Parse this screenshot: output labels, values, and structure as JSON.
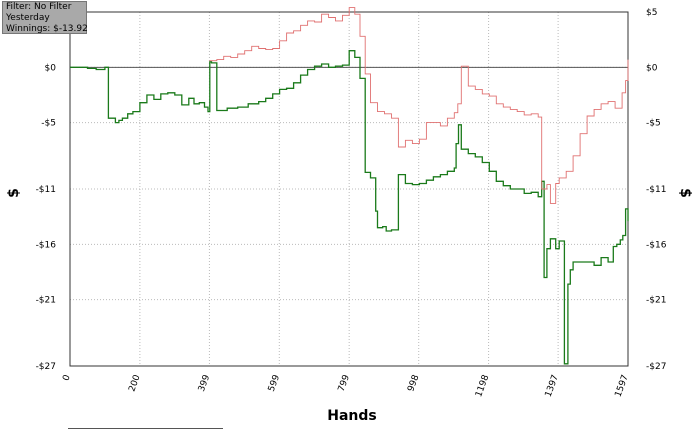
{
  "info": {
    "filter": "Filter: No Filter",
    "period": "Yesterday",
    "winnings": "Winnings: $-13.92"
  },
  "chart_data": {
    "type": "line",
    "xlabel": "Hands",
    "ylabel": "$",
    "xlim": [
      0,
      1597
    ],
    "ylim": [
      -27,
      5
    ],
    "x_ticks": [
      {
        "v": 0,
        "label": "0"
      },
      {
        "v": 200,
        "label": "200"
      },
      {
        "v": 399,
        "label": "399"
      },
      {
        "v": 599,
        "label": "599"
      },
      {
        "v": 799,
        "label": "799"
      },
      {
        "v": 998,
        "label": "998"
      },
      {
        "v": 1198,
        "label": "1198"
      },
      {
        "v": 1397,
        "label": "1397"
      },
      {
        "v": 1597,
        "label": "1597"
      }
    ],
    "y_ticks": [
      {
        "v": 5,
        "label": "$5"
      },
      {
        "v": 0,
        "label": "$0"
      },
      {
        "v": -5,
        "label": "-$5"
      },
      {
        "v": -11,
        "label": "-$11"
      },
      {
        "v": -16,
        "label": "-$16"
      },
      {
        "v": -21,
        "label": "-$21"
      },
      {
        "v": -27,
        "label": "-$27"
      }
    ],
    "grid": true,
    "colors": {
      "series1": "#1a7a1a",
      "series2": "#e07070",
      "zero": "#555555",
      "grid": "#bbbbbb"
    },
    "series": [
      {
        "x": [
          0,
          25,
          50,
          75,
          100,
          110,
          130,
          140,
          150,
          165,
          180,
          200,
          220,
          240,
          260,
          280,
          300,
          320,
          340,
          355,
          370,
          385,
          395,
          400,
          405,
          420,
          450,
          480,
          510,
          540,
          560,
          580,
          600,
          620,
          640,
          660,
          680,
          700,
          720,
          740,
          760,
          780,
          799,
          815,
          830,
          845,
          860,
          875,
          880,
          895,
          905,
          920,
          940,
          960,
          980,
          1000,
          1020,
          1040,
          1060,
          1080,
          1100,
          1105,
          1112,
          1120,
          1140,
          1160,
          1180,
          1200,
          1220,
          1240,
          1260,
          1280,
          1300,
          1320,
          1340,
          1350,
          1357,
          1365,
          1375,
          1390,
          1400,
          1415,
          1425,
          1432,
          1440,
          1460,
          1480,
          1500,
          1520,
          1540,
          1555,
          1565,
          1575,
          1582,
          1590,
          1597
        ],
        "values": [
          0,
          0,
          -0.1,
          -0.2,
          0,
          -4.6,
          -5.0,
          -4.8,
          -4.6,
          -4.2,
          -4.0,
          -3.2,
          -2.5,
          -2.9,
          -2.4,
          -2.3,
          -2.5,
          -3.4,
          -2.8,
          -3.3,
          -3.2,
          -3.6,
          -4.0,
          0.5,
          0.4,
          -3.9,
          -3.7,
          -3.6,
          -3.3,
          -3.1,
          -2.8,
          -2.4,
          -2.0,
          -1.9,
          -1.4,
          -0.7,
          -0.2,
          0.1,
          0.3,
          0.0,
          0.1,
          0.2,
          1.5,
          0.9,
          -1.0,
          -9.5,
          -10.0,
          -13.0,
          -14.5,
          -14.4,
          -14.8,
          -14.7,
          -9.7,
          -10.5,
          -10.6,
          -10.5,
          -10.2,
          -9.9,
          -9.7,
          -9.4,
          -9.1,
          -6.9,
          -5.2,
          -7.4,
          -7.8,
          -8.1,
          -8.6,
          -9.4,
          -10.3,
          -10.7,
          -11.0,
          -11.0,
          -11.4,
          -11.3,
          -11.7,
          -10.3,
          -19.0,
          -16.4,
          -15.5,
          -16.4,
          -15.7,
          -26.8,
          -19.6,
          -18.3,
          -17.6,
          -17.6,
          -17.6,
          -17.9,
          -17.2,
          -17.6,
          -16.2,
          -16.0,
          -15.6,
          -15.2,
          -12.8,
          -13.9
        ]
      },
      {
        "x": [
          399,
          420,
          440,
          460,
          480,
          500,
          520,
          540,
          560,
          580,
          600,
          620,
          640,
          660,
          680,
          700,
          720,
          740,
          760,
          780,
          799,
          815,
          830,
          845,
          860,
          880,
          900,
          920,
          940,
          960,
          980,
          1000,
          1020,
          1040,
          1060,
          1080,
          1100,
          1110,
          1120,
          1140,
          1160,
          1180,
          1200,
          1220,
          1240,
          1260,
          1280,
          1300,
          1320,
          1340,
          1350,
          1365,
          1375,
          1390,
          1400,
          1420,
          1440,
          1460,
          1480,
          1500,
          1520,
          1540,
          1560,
          1580,
          1590,
          1597
        ],
        "values": [
          0.6,
          0.7,
          1.0,
          0.9,
          1.2,
          1.5,
          1.9,
          1.7,
          1.6,
          1.7,
          2.4,
          3.1,
          3.3,
          3.8,
          4.2,
          4.1,
          4.8,
          4.5,
          4.2,
          4.7,
          5.4,
          4.8,
          2.8,
          -0.6,
          -3.2,
          -4.0,
          -4.2,
          -4.6,
          -7.2,
          -6.6,
          -6.9,
          -6.5,
          -5.0,
          -5.0,
          -5.3,
          -4.6,
          -4.1,
          -3.3,
          0.1,
          -1.7,
          -2.0,
          -2.4,
          -2.6,
          -3.3,
          -3.6,
          -3.8,
          -4.0,
          -4.3,
          -4.2,
          -4.5,
          -11.0,
          -10.6,
          -12.3,
          -10.5,
          -10.0,
          -9.4,
          -8.0,
          -6.0,
          -4.4,
          -3.8,
          -3.3,
          -3.1,
          -3.7,
          -2.3,
          -1.2,
          0.7
        ]
      }
    ]
  }
}
